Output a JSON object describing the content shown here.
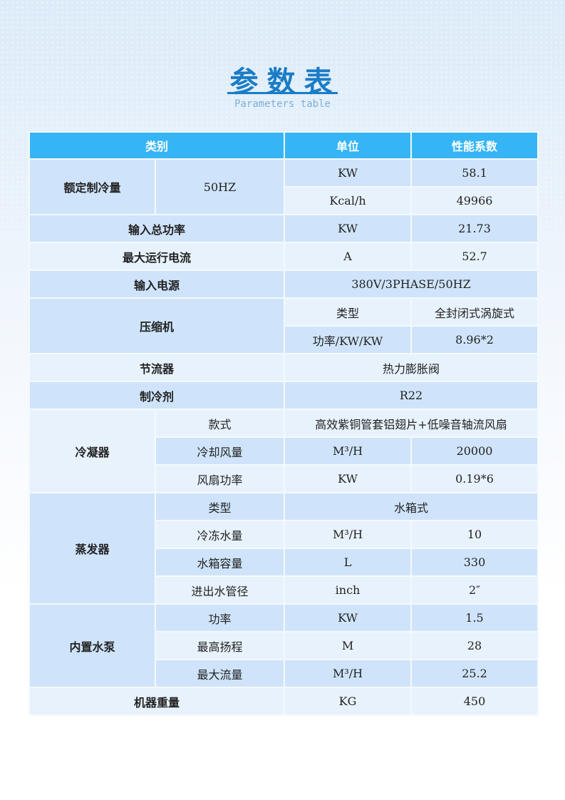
{
  "title": "参数表",
  "subtitle": "Parameters table",
  "header": [
    "类别",
    "单位",
    "性能系数"
  ],
  "rows": {
    "cooling": {
      "label": "额定制冷量",
      "sub": "50HZ",
      "r1": [
        "KW",
        "58.1"
      ],
      "r2": [
        "Kcal/h",
        "49966"
      ]
    },
    "power": {
      "label": "输入总功率",
      "unit": "KW",
      "value": "21.73"
    },
    "current": {
      "label": "最大运行电流",
      "unit": "A",
      "value": "52.7"
    },
    "supply": {
      "label": "输入电源",
      "value": "380V/3PHASE/50HZ"
    },
    "compressor": {
      "label": "压缩机",
      "r1": [
        "类型",
        "全封闭式涡旋式"
      ],
      "r2": [
        "功率/KW/KW",
        "8.96*2"
      ]
    },
    "throttle": {
      "label": "节流器",
      "value": "热力膨胀阀"
    },
    "refrigerant": {
      "label": "制冷剂",
      "value": "R22"
    },
    "condenser": {
      "label": "冷凝器",
      "r1": [
        "款式",
        "高效紫铜管套铝翅片+低噪音轴流风扇"
      ],
      "r2": [
        "冷却风量",
        "M³/H",
        "20000"
      ],
      "r3": [
        "风扇功率",
        "KW",
        "0.19*6"
      ]
    },
    "evaporator": {
      "label": "蒸发器",
      "r1": [
        "类型",
        "水箱式"
      ],
      "r2": [
        "冷冻水量",
        "M³/H",
        "10"
      ],
      "r3": [
        "水箱容量",
        "L",
        "330"
      ],
      "r4": [
        "进出水管径",
        "inch",
        "2″"
      ]
    },
    "pump": {
      "label": "内置水泵",
      "r1": [
        "功率",
        "KW",
        "1.5"
      ],
      "r2": [
        "最高扬程",
        "M",
        "28"
      ],
      "r3": [
        "最大流量",
        "M³/H",
        "25.2"
      ]
    },
    "weight": {
      "label": "机器重量",
      "unit": "KG",
      "value": "450"
    }
  }
}
